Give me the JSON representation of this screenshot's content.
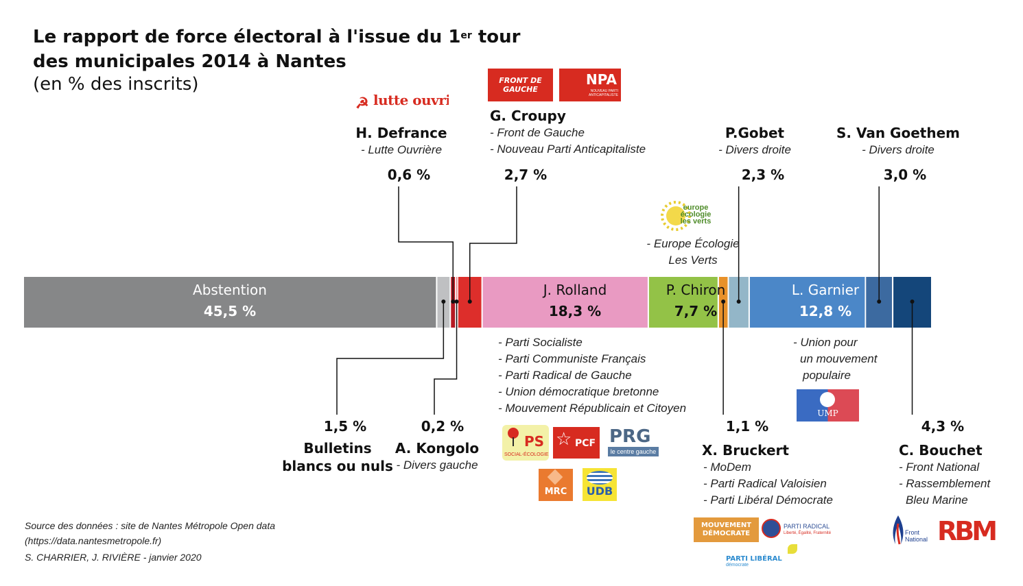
{
  "title": {
    "line1_pre": "Le rapport de force électoral à l'issue du 1",
    "line1_sup": "er",
    "line1_post": " tour",
    "line2": "des municipales 2014 à Nantes",
    "subtitle": "(en % des inscrits)"
  },
  "chart_data": {
    "type": "bar",
    "orientation": "horizontal-stacked",
    "unit": "% des inscrits",
    "categories": [
      "Abstention",
      "Bulletins blancs ou nuls",
      "H. Defrance",
      "A. Kongolo",
      "G. Croupy",
      "J. Rolland",
      "P. Chiron",
      "X. Bruckert",
      "P.Gobet",
      "L. Garnier",
      "S. Van Goethem",
      "C. Bouchet"
    ],
    "values": [
      45.5,
      1.5,
      0.6,
      0.2,
      2.7,
      18.3,
      7.7,
      1.1,
      2.3,
      12.8,
      3.0,
      4.3
    ],
    "colors": [
      "#868788",
      "#bfc0c2",
      "#b51a23",
      "#d85a5e",
      "#dd2e2b",
      "#e99ac2",
      "#93c247",
      "#e8912a",
      "#93b6c8",
      "#4b87c8",
      "#3c6aa0",
      "#14467a"
    ]
  },
  "bar_labels": {
    "abstention": {
      "name": "Abstention",
      "pct": "45,5 %"
    },
    "rolland": {
      "name": "J. Rolland",
      "pct": "18,3 %"
    },
    "chiron": {
      "name": "P. Chiron",
      "pct": "7,7 %"
    },
    "garnier": {
      "name": "L. Garnier",
      "pct": "12,8 %"
    }
  },
  "top_labels": {
    "defrance": {
      "name": "H. Defrance",
      "party": "- Lutte Ouvrière",
      "pct": "0,6 %"
    },
    "croupy": {
      "name": "G. Croupy",
      "party1": "- Front de Gauche",
      "party2": "- Nouveau Parti Anticapitaliste",
      "pct": "2,7 %"
    },
    "gobet": {
      "name": "P.Gobet",
      "party": "- Divers droite",
      "pct": "2,3 %"
    },
    "vangoethem": {
      "name": "S. Van Goethem",
      "party": "- Divers droite",
      "pct": "3,0 %"
    },
    "chiron_party1": "- Europe Écologie",
    "chiron_party2": "Les Verts"
  },
  "bottom_labels": {
    "blancs": {
      "pct": "1,5 %",
      "name1": "Bulletins",
      "name2": "blancs ou nuls"
    },
    "kongolo": {
      "pct": "0,2 %",
      "name": "A. Kongolo",
      "party": "- Divers gauche"
    },
    "rolland_parties": [
      "- Parti Socialiste",
      "- Parti Communiste Français",
      "- Parti Radical de Gauche",
      "- Union démocratique bretonne",
      "- Mouvement Républicain et Citoyen"
    ],
    "garnier_party": [
      "- Union pour",
      "un mouvement",
      "populaire"
    ],
    "bruckert": {
      "pct": "1,1 %",
      "name": "X. Bruckert",
      "parties": [
        "- MoDem",
        "- Parti Radical Valoisien",
        "- Parti Libéral Démocrate"
      ]
    },
    "bouchet": {
      "pct": "4,3 %",
      "name": "C. Bouchet",
      "parties": [
        "- Front National",
        "- Rassemblement",
        "Bleu Marine"
      ]
    }
  },
  "logos": {
    "lutte": "lutte ouvrière",
    "fdg": "FRONT DE GAUCHE",
    "npa": "NPA",
    "npa_sub": "NOUVEAU PARTI ANTICAPITALISTE",
    "eelv": "europe écologie les verts",
    "ps": "PS",
    "ps_sub": "SOCIAL-ÉCOLOGIE",
    "pcf": "PCF",
    "prg": "PRG",
    "prg_sub": "le centre gauche",
    "mrc": "MRC",
    "udb": "UDB",
    "ump": "UMP",
    "modem": "MOUVEMENT DÉMOCRATE",
    "prv": "PARTI RADICAL",
    "prv_sub": "Liberté, Égalité, Fraternité",
    "pld": "PARTI LIBÉRAL",
    "pld_sub": "démocrate",
    "fn": "Front National",
    "rbm": "RBM"
  },
  "source": {
    "line1": "Source des données : site de Nantes Métropole Open data",
    "line2": "(https://data.nantesmetropole.fr)",
    "line3": "S. CHARRIER, J. RIVIÈRE - janvier 2020"
  }
}
